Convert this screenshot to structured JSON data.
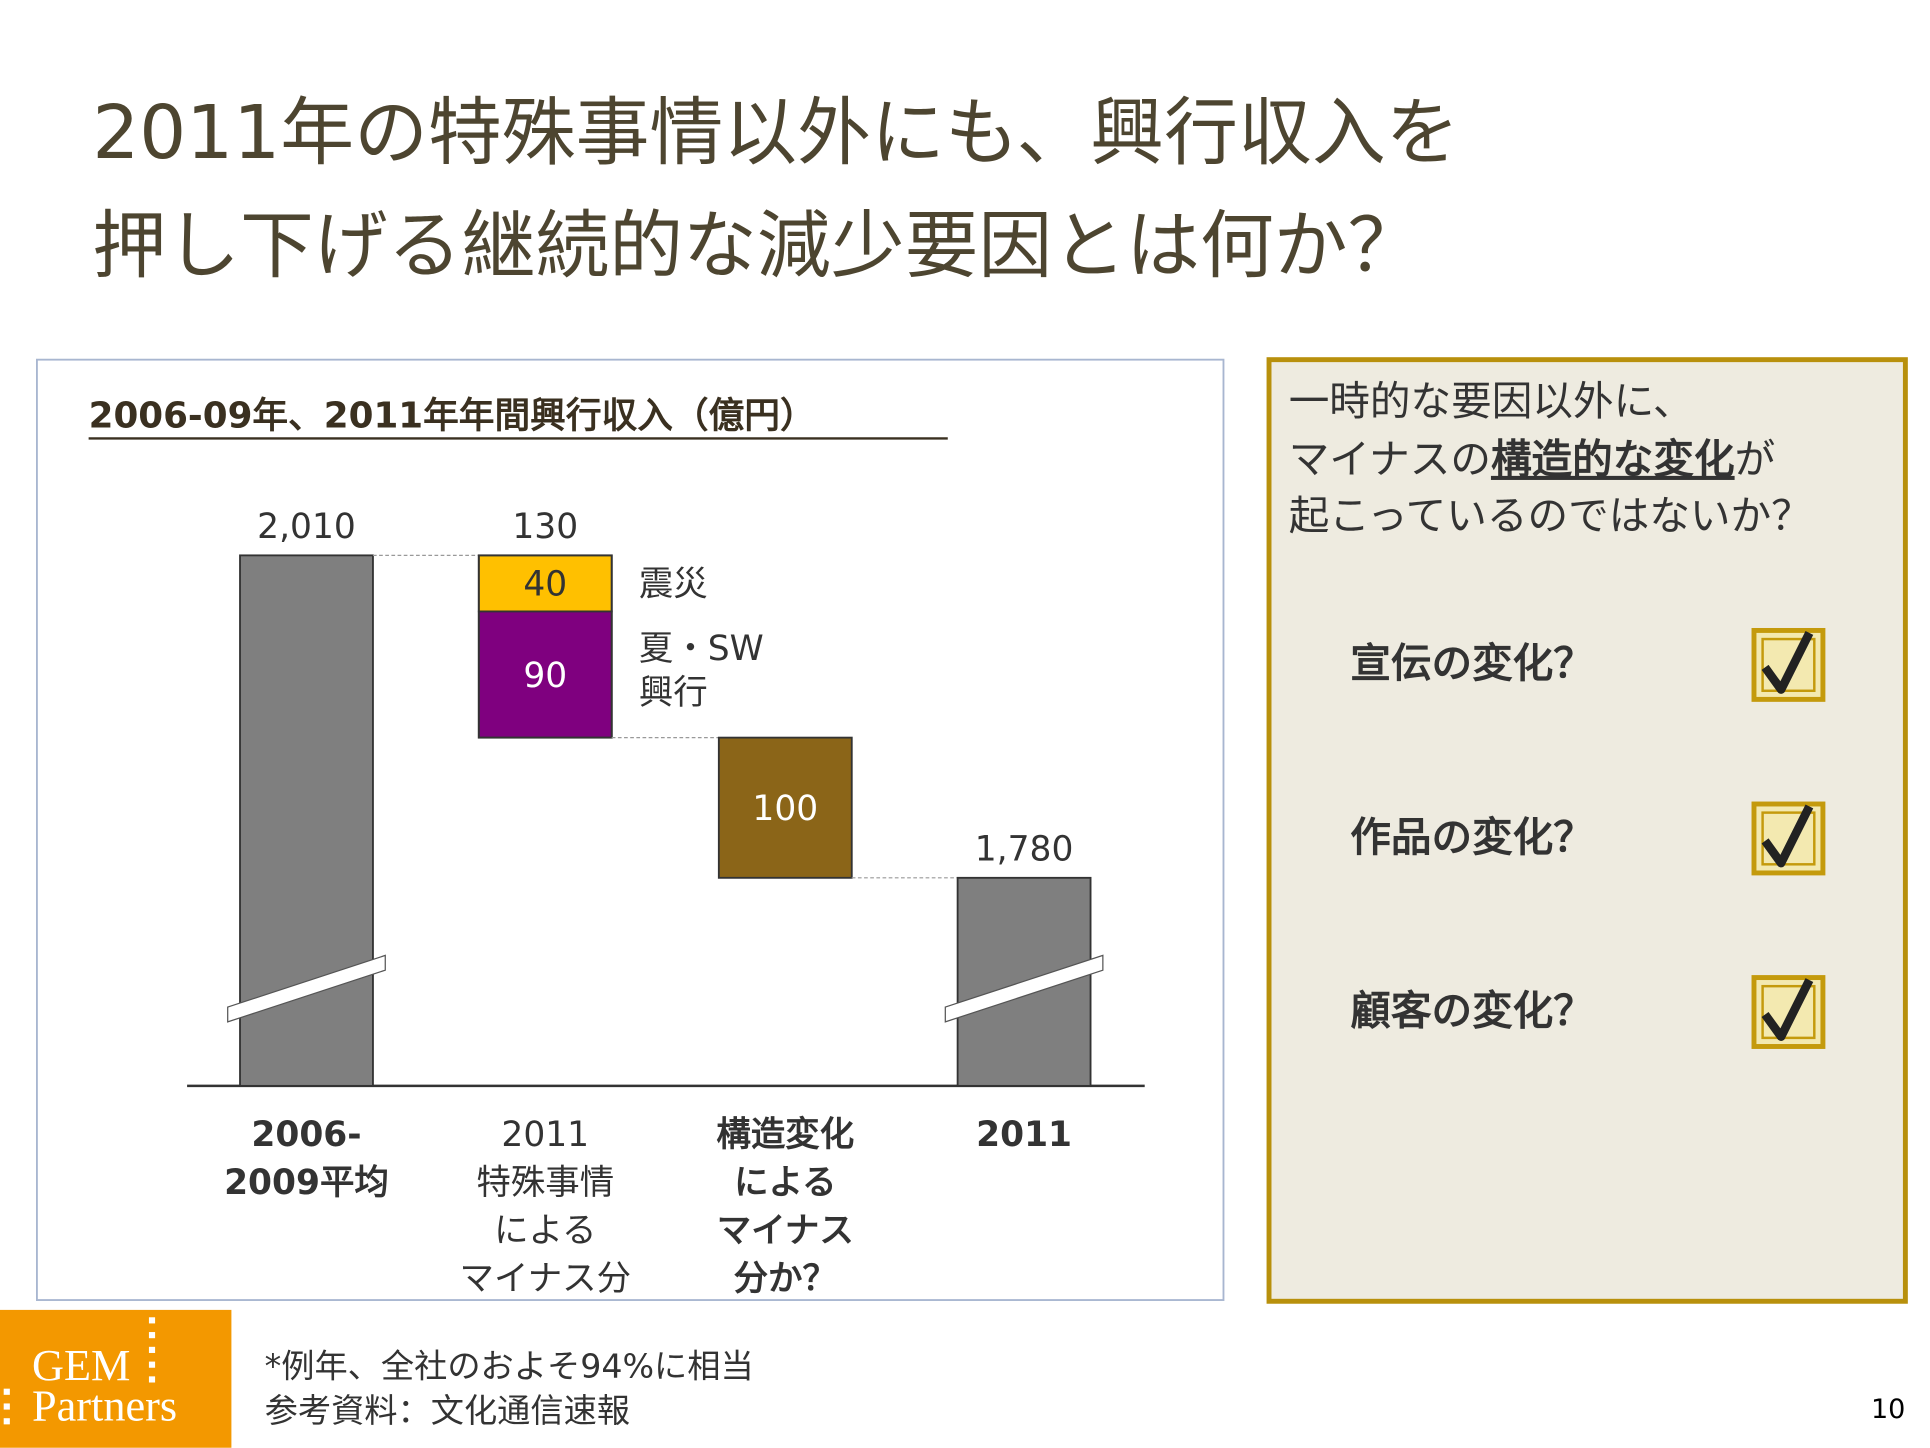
{
  "title_lines": [
    "2011年の特殊事情以外にも、興行収入を",
    "押し下げる継続的な減少要因とは何か？"
  ],
  "chart_data": {
    "type": "waterfall",
    "title": "2006-09年、2011年年間興行収入（億円）",
    "categories": [
      [
        "2006-",
        "2009平均"
      ],
      [
        "2011",
        "特殊事情",
        "による",
        "マイナス分"
      ],
      [
        "構造変化",
        "による",
        "マイナス",
        "分か？"
      ],
      [
        "2011"
      ]
    ],
    "kinds": [
      "total",
      "decrease",
      "decrease",
      "total"
    ],
    "values": [
      2010,
      130,
      100,
      1780
    ],
    "value_labels": [
      "2,010",
      "130",
      "100",
      "1,780"
    ],
    "colors": [
      "#7f7f7f",
      null,
      "#8b6518",
      "#7f7f7f"
    ],
    "segments": {
      "1": [
        {
          "name": [
            "震災"
          ],
          "value": 40,
          "color": "#ffc000"
        },
        {
          "name": [
            "夏・SW",
            "興行"
          ],
          "value": 90,
          "color": "#7f007f"
        }
      ]
    }
  },
  "panel": {
    "line1": "一時的な要因以外に、",
    "line2_before": "マイナスの",
    "line2_emphasis": "構造的な変化",
    "line2_after": "が",
    "line3": "起こっているのではないか？",
    "checklist": [
      "宣伝の変化？",
      "作品の変化？",
      "顧客の変化？"
    ]
  },
  "footer": {
    "logo": [
      "GEM",
      "Partners"
    ],
    "notes": [
      "*例年、全社のおよそ94%に相当",
      "参考資料：文化通信速報"
    ],
    "page_number": "10"
  }
}
